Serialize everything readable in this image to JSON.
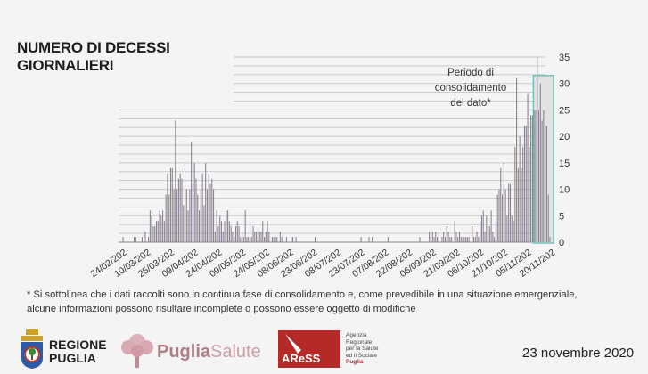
{
  "title_lines": [
    "NUMERO DI DECESSI",
    "GIORNALIERI"
  ],
  "annotation_lines": [
    "Periodo di",
    "consolidamento",
    "del dato*"
  ],
  "footnote_lines": [
    "* Si sottolinea che i dati raccolti sono in continua fase di consolidamento e, come prevedibile in una situazione emergenziale,",
    "alcune informazioni possono risultare incomplete o possono essere oggetto di modifiche"
  ],
  "logos": {
    "regione_puglia": [
      "REGIONE",
      "PUGLIA"
    ],
    "puglia_salute": {
      "bold": "Puglia",
      "light": "Salute"
    },
    "aress": {
      "mark": "AReSS",
      "lines": [
        "Agenzia",
        "Regionale",
        "per la Salute",
        "ed il Sociale"
      ],
      "region": "Puglia"
    }
  },
  "date": "23 novembre 2020",
  "colors": {
    "bar": "#8a8290",
    "grid": "#c9c9c9",
    "highlight_border": "#6cc4b8",
    "highlight_fill": "#e2e2e2",
    "aress_red": "#b52a26"
  },
  "chart_data": {
    "type": "bar",
    "title": "NUMERO DI DECESSI GIORNALIERI",
    "x_start": "2020-02-24",
    "x_tick_labels": [
      "24/02/202",
      "10/03/202",
      "25/03/202",
      "09/04/202",
      "24/04/202",
      "09/05/202",
      "24/05/202",
      "08/06/202",
      "23/06/202",
      "08/07/202",
      "23/07/202",
      "07/08/202",
      "22/08/202",
      "06/09/202",
      "21/09/202",
      "06/10/202",
      "21/10/202",
      "05/11/202",
      "20/11/202"
    ],
    "x_tick_step_days": 15,
    "y_ticks": [
      0,
      5,
      10,
      15,
      20,
      25,
      30,
      35
    ],
    "ylim": [
      0,
      35
    ],
    "y_axis_position": "right",
    "grid": true,
    "highlight_label": "Periodo di consolidamento del dato*",
    "highlight_last_days": 11,
    "values": [
      0,
      0,
      1,
      0,
      0,
      0,
      0,
      0,
      0,
      1,
      1,
      0,
      0,
      0,
      1,
      0,
      2,
      0,
      1,
      6,
      5,
      3,
      3,
      4,
      4,
      6,
      5,
      6,
      4,
      9,
      13,
      9,
      14,
      14,
      10,
      23,
      10,
      12,
      13,
      12,
      7,
      14,
      10,
      6,
      10,
      19,
      11,
      15,
      12,
      9,
      6,
      10,
      13,
      7,
      15,
      10,
      13,
      11,
      12,
      10,
      2,
      6,
      3,
      5,
      4,
      2,
      4,
      6,
      6,
      4,
      3,
      2,
      1,
      3,
      4,
      3,
      1,
      2,
      1,
      6,
      1,
      1,
      4,
      1,
      3,
      2,
      2,
      1,
      2,
      2,
      4,
      1,
      2,
      4,
      2,
      0,
      1,
      1,
      1,
      1,
      0,
      2,
      1,
      0,
      0,
      1,
      0,
      0,
      1,
      1,
      0,
      1,
      0,
      0,
      0,
      0,
      0,
      0,
      0,
      0,
      0,
      0,
      0,
      1,
      0,
      0,
      0,
      0,
      0,
      0,
      0,
      0,
      0,
      0,
      0,
      0,
      0,
      0,
      0,
      0,
      0,
      0,
      0,
      0,
      0,
      0,
      0,
      0,
      0,
      0,
      0,
      0,
      1,
      0,
      0,
      0,
      0,
      1,
      0,
      1,
      0,
      0,
      0,
      0,
      0,
      0,
      0,
      0,
      0,
      1,
      0,
      0,
      0,
      0,
      0,
      0,
      0,
      0,
      0,
      0,
      0,
      0,
      0,
      0,
      0,
      0,
      0,
      0,
      0,
      1,
      0,
      0,
      0,
      0,
      0,
      2,
      1,
      2,
      1,
      2,
      1,
      2,
      0,
      1,
      2,
      1,
      3,
      2,
      1,
      1,
      0,
      4,
      2,
      1,
      2,
      1,
      1,
      1,
      1,
      1,
      1,
      0,
      3,
      1,
      1,
      2,
      1,
      4,
      5,
      6,
      2,
      5,
      3,
      3,
      6,
      2,
      1,
      4,
      9,
      10,
      14,
      9,
      15,
      10,
      5,
      11,
      11,
      5,
      4,
      18,
      31,
      14,
      20,
      14,
      18,
      22,
      22,
      28,
      18,
      24,
      24,
      25,
      25,
      35,
      25,
      30,
      23,
      25,
      22,
      22,
      9,
      1,
      0
    ]
  }
}
